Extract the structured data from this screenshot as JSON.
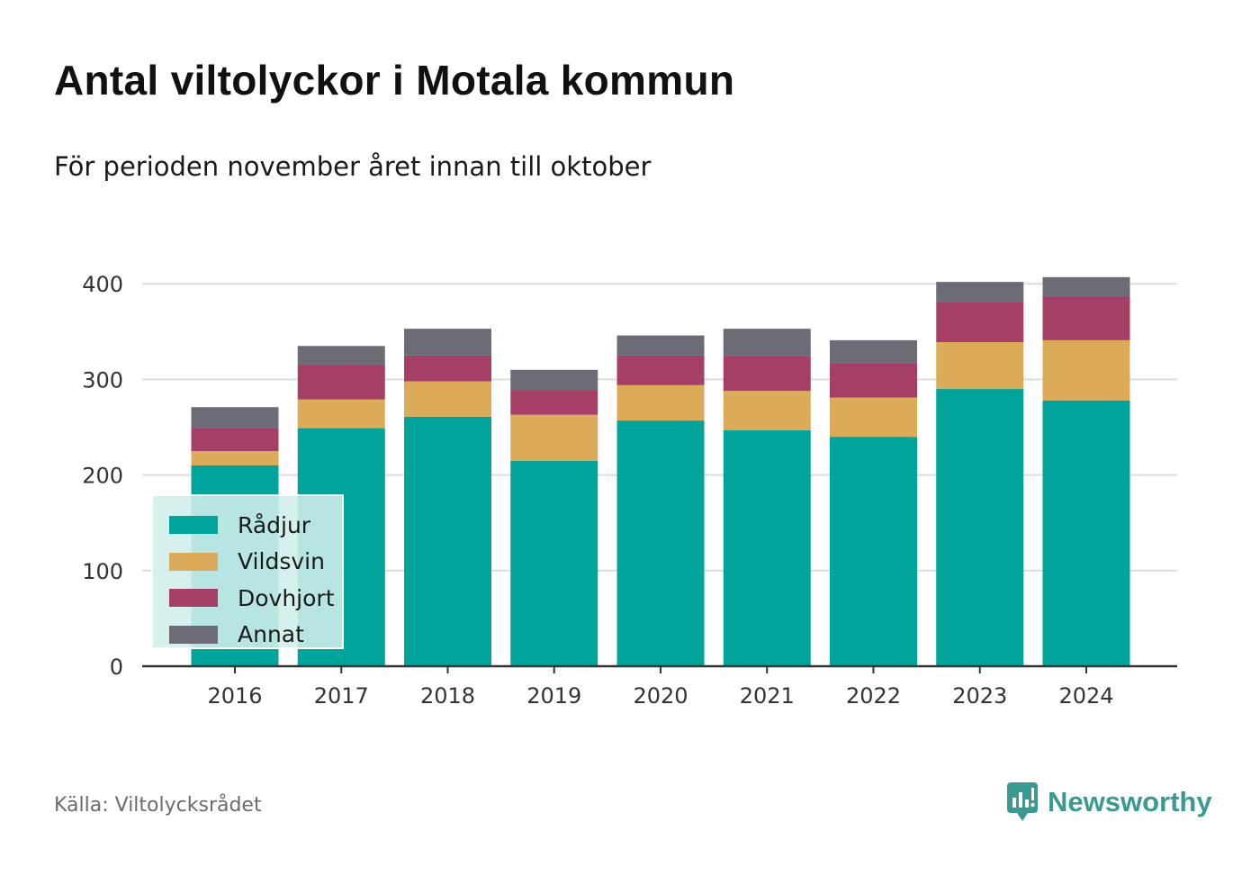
{
  "header": {
    "title": "Antal viltolyckor i Motala kommun",
    "subtitle": "För perioden november året innan till oktober"
  },
  "footer": {
    "source": "Källa: Viltolycksrådet",
    "brand": "Newsworthy"
  },
  "chart_data": {
    "type": "bar",
    "stacked": true,
    "title": "Antal viltolyckor i Motala kommun",
    "subtitle": "För perioden november året innan till oktober",
    "xlabel": "",
    "ylabel": "",
    "ylim": [
      0,
      420
    ],
    "yticks": [
      0,
      100,
      200,
      300,
      400
    ],
    "grid": true,
    "legend_placement": "bottom-left",
    "categories": [
      "2016",
      "2017",
      "2018",
      "2019",
      "2020",
      "2021",
      "2022",
      "2023",
      "2024"
    ],
    "series": [
      {
        "name": "Rådjur",
        "color": "#00a49a",
        "values": [
          210,
          249,
          261,
          215,
          257,
          247,
          240,
          290,
          278
        ]
      },
      {
        "name": "Vildsvin",
        "color": "#dbab59",
        "values": [
          15,
          30,
          37,
          48,
          37,
          41,
          41,
          49,
          63
        ]
      },
      {
        "name": "Dovhjort",
        "color": "#a53f67",
        "values": [
          24,
          36,
          27,
          26,
          31,
          36,
          36,
          42,
          46
        ]
      },
      {
        "name": "Annat",
        "color": "#6d6c76",
        "values": [
          22,
          20,
          28,
          21,
          21,
          29,
          24,
          21,
          20
        ]
      }
    ]
  }
}
